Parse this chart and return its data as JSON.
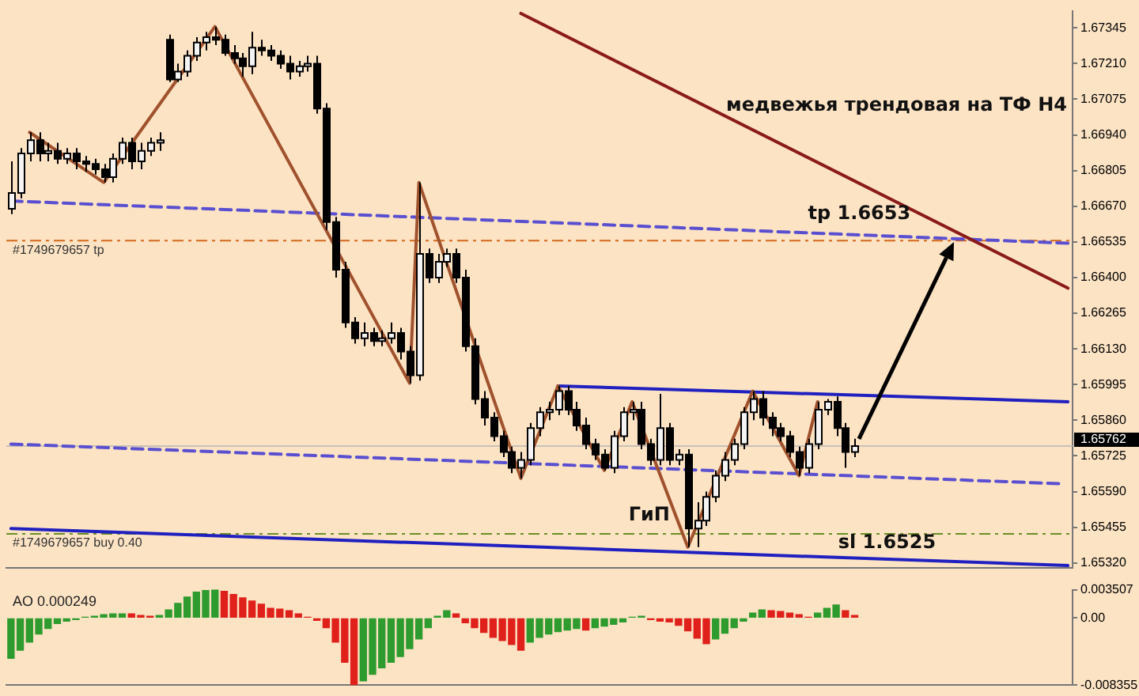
{
  "chart_data": [
    {
      "type": "candlestick",
      "ylim": [
        1.653,
        1.6741
      ],
      "tick_labels": "y",
      "grid": false,
      "yticks": [
        {
          "value": 1.6532,
          "label": "1.65320"
        },
        1.65455,
        {
          "value": 1.6559,
          "label": "1.65590"
        },
        1.65725,
        {
          "value": 1.6586,
          "label": "1.65860"
        },
        1.65995,
        {
          "value": 1.6613,
          "label": "1.66130"
        },
        1.66265,
        {
          "value": 1.664,
          "label": "1.66400"
        },
        1.66535,
        {
          "value": 1.6667,
          "label": "1.66670"
        },
        1.66805,
        {
          "value": 1.6694,
          "label": "1.66940"
        },
        1.67075,
        {
          "value": 1.6721,
          "label": "1.67210"
        },
        1.67345
      ],
      "categories": [
        null,
        null,
        null,
        null,
        null,
        null,
        null,
        null,
        null,
        null,
        null,
        null,
        null,
        null,
        null,
        null,
        null,
        null,
        null,
        null,
        null,
        null,
        null,
        null,
        null,
        null,
        null,
        null,
        null,
        null,
        null,
        null,
        null,
        null,
        null,
        null,
        null,
        null,
        null,
        null,
        null,
        null,
        null,
        null,
        null,
        null,
        null,
        null,
        null,
        null,
        null,
        null,
        null,
        null,
        null,
        null,
        null,
        null,
        null,
        null,
        null,
        null,
        null,
        null,
        null,
        null,
        null,
        null,
        null,
        null,
        null,
        null,
        null,
        null,
        null,
        null,
        null,
        null,
        null,
        null,
        null,
        null,
        null,
        null,
        null,
        null,
        null,
        null,
        null,
        null,
        null,
        null,
        null,
        null,
        null,
        null,
        null,
        null,
        null,
        null,
        null,
        null,
        null,
        null,
        null,
        null,
        null,
        null,
        null,
        null,
        null,
        null,
        null,
        null,
        null
      ],
      "ohlc": [
        [
          1.6666,
          1.6684,
          1.6664,
          1.6672
        ],
        [
          1.6672,
          1.6689,
          1.667,
          1.6687
        ],
        [
          1.6687,
          1.6695,
          1.6684,
          1.6692
        ],
        [
          1.6692,
          1.6695,
          1.6684,
          1.6687
        ],
        [
          1.6687,
          1.6691,
          1.6684,
          1.6688
        ],
        [
          1.6688,
          1.6691,
          1.6683,
          1.6685
        ],
        [
          1.6685,
          1.6689,
          1.6683,
          1.6687
        ],
        [
          1.6687,
          1.6689,
          1.6681,
          1.6684
        ],
        [
          1.6684,
          1.6686,
          1.668,
          1.6683
        ],
        [
          1.6683,
          1.6685,
          1.6679,
          1.6681
        ],
        [
          1.6681,
          1.6683,
          1.6676,
          1.6678
        ],
        [
          1.6678,
          1.6687,
          1.6676,
          1.6685
        ],
        [
          1.6685,
          1.6693,
          1.6683,
          1.6691
        ],
        [
          1.6691,
          1.6693,
          1.6681,
          1.6684
        ],
        [
          1.6684,
          1.6691,
          1.6681,
          1.6688
        ],
        [
          1.6688,
          1.6693,
          1.6686,
          1.6691
        ],
        [
          1.6691,
          1.6695,
          1.6688,
          1.6692
        ],
        [
          1.673,
          1.6732,
          1.6714,
          1.6715
        ],
        [
          1.6715,
          1.6721,
          1.6714,
          1.6718
        ],
        [
          1.6718,
          1.6726,
          1.6716,
          1.6724
        ],
        [
          1.6724,
          1.6731,
          1.6722,
          1.6729
        ],
        [
          1.6729,
          1.6733,
          1.6726,
          1.6731
        ],
        [
          1.6731,
          1.6735,
          1.6728,
          1.673
        ],
        [
          1.673,
          1.6732,
          1.6724,
          1.6725
        ],
        [
          1.6725,
          1.6728,
          1.6721,
          1.6723
        ],
        [
          1.6723,
          1.6725,
          1.6716,
          1.672
        ],
        [
          1.672,
          1.6733,
          1.6717,
          1.6727
        ],
        [
          1.6727,
          1.673,
          1.6724,
          1.6726
        ],
        [
          1.6726,
          1.6728,
          1.6722,
          1.6724
        ],
        [
          1.6724,
          1.6726,
          1.6719,
          1.6721
        ],
        [
          1.6721,
          1.6724,
          1.6715,
          1.6718
        ],
        [
          1.6718,
          1.6722,
          1.6716,
          1.672
        ],
        [
          1.672,
          1.6724,
          1.6718,
          1.6721
        ],
        [
          1.6721,
          1.6724,
          1.6702,
          1.6704
        ],
        [
          1.6704,
          1.6706,
          1.6658,
          1.6661
        ],
        [
          1.6661,
          1.6663,
          1.664,
          1.6643
        ],
        [
          1.6643,
          1.6646,
          1.6621,
          1.6623
        ],
        [
          1.6623,
          1.6625,
          1.6615,
          1.6617
        ],
        [
          1.6617,
          1.6623,
          1.6614,
          1.6619
        ],
        [
          1.6619,
          1.6621,
          1.6614,
          1.6616
        ],
        [
          1.6616,
          1.662,
          1.6614,
          1.6617
        ],
        [
          1.6617,
          1.6623,
          1.6615,
          1.6619
        ],
        [
          1.6619,
          1.6621,
          1.6609,
          1.6612
        ],
        [
          1.6612,
          1.6614,
          1.66,
          1.6603
        ],
        [
          1.6603,
          1.6676,
          1.6601,
          1.6649
        ],
        [
          1.6649,
          1.6651,
          1.6638,
          1.664
        ],
        [
          1.664,
          1.6649,
          1.6638,
          1.6646
        ],
        [
          1.6646,
          1.6651,
          1.6644,
          1.6649
        ],
        [
          1.6649,
          1.6651,
          1.6638,
          1.664
        ],
        [
          1.664,
          1.6643,
          1.6612,
          1.6614
        ],
        [
          1.6614,
          1.6617,
          1.6592,
          1.6594
        ],
        [
          1.6594,
          1.6597,
          1.6584,
          1.6587
        ],
        [
          1.6587,
          1.6589,
          1.6578,
          1.658
        ],
        [
          1.658,
          1.6582,
          1.6572,
          1.6574
        ],
        [
          1.6574,
          1.6576,
          1.6566,
          1.6568
        ],
        [
          1.6568,
          1.6574,
          1.6564,
          1.6571
        ],
        [
          1.6571,
          1.6585,
          1.6569,
          1.6583
        ],
        [
          1.6583,
          1.6591,
          1.658,
          1.6589
        ],
        [
          1.6589,
          1.6593,
          1.6586,
          1.659
        ],
        [
          1.659,
          1.6599,
          1.6588,
          1.6597
        ],
        [
          1.6597,
          1.6599,
          1.6588,
          1.659
        ],
        [
          1.659,
          1.6593,
          1.6582,
          1.6584
        ],
        [
          1.6584,
          1.6587,
          1.6575,
          1.6577
        ],
        [
          1.6577,
          1.6579,
          1.6571,
          1.6573
        ],
        [
          1.6573,
          1.6575,
          1.6567,
          1.6568
        ],
        [
          1.6568,
          1.6582,
          1.6566,
          1.658
        ],
        [
          1.658,
          1.6591,
          1.6578,
          1.6589
        ],
        [
          1.6589,
          1.6593,
          1.6586,
          1.659
        ],
        [
          1.659,
          1.6593,
          1.6575,
          1.6577
        ],
        [
          1.6577,
          1.6579,
          1.6569,
          1.6571
        ],
        [
          1.6571,
          1.6596,
          1.6569,
          1.6583
        ],
        [
          1.6583,
          1.6585,
          1.6569,
          1.6571
        ],
        [
          1.6571,
          1.6575,
          1.6569,
          1.6573
        ],
        [
          1.6573,
          1.6575,
          1.6538,
          1.6545
        ],
        [
          1.6545,
          1.6555,
          1.6538,
          1.6548
        ],
        [
          1.6548,
          1.6559,
          1.6546,
          1.6557
        ],
        [
          1.6557,
          1.6567,
          1.6555,
          1.6565
        ],
        [
          1.6565,
          1.6574,
          1.6563,
          1.6571
        ],
        [
          1.6571,
          1.6579,
          1.6569,
          1.6577
        ],
        [
          1.6577,
          1.6591,
          1.6575,
          1.6589
        ],
        [
          1.6589,
          1.6597,
          1.6586,
          1.6594
        ],
        [
          1.6594,
          1.6597,
          1.6584,
          1.6587
        ],
        [
          1.6587,
          1.6589,
          1.658,
          1.6583
        ],
        [
          1.6583,
          1.6585,
          1.6578,
          1.658
        ],
        [
          1.658,
          1.6582,
          1.6572,
          1.6574
        ],
        [
          1.6574,
          1.6576,
          1.6565,
          1.6568
        ],
        [
          1.6568,
          1.6579,
          1.6566,
          1.6577
        ],
        [
          1.6577,
          1.6593,
          1.6575,
          1.659
        ],
        [
          1.659,
          1.6594,
          1.6588,
          1.6593
        ],
        [
          1.6593,
          1.6595,
          1.658,
          1.6583
        ],
        [
          1.6583,
          1.6585,
          1.6568,
          1.6574
        ],
        [
          1.6574,
          1.6579,
          1.6572,
          1.65762
        ],
        null,
        null,
        null,
        null,
        null,
        null,
        null,
        null,
        null,
        null,
        null,
        null,
        null,
        null,
        null,
        null,
        null,
        null,
        null,
        null,
        null,
        null,
        null
      ],
      "series": [
        {
          "type": "line",
          "color": "#a0522d",
          "line_style": "solid",
          "values": [
            null,
            null,
            1.6695,
            null,
            null,
            null,
            null,
            null,
            null,
            null,
            1.6676,
            null,
            null,
            null,
            null,
            null,
            null,
            null,
            null,
            null,
            null,
            null,
            1.6735,
            null,
            null,
            null,
            null,
            null,
            null,
            null,
            null,
            null,
            null,
            null,
            null,
            null,
            null,
            null,
            null,
            null,
            null,
            null,
            null,
            1.66,
            1.6676,
            null,
            null,
            null,
            null,
            null,
            null,
            null,
            null,
            null,
            null,
            1.6564,
            null,
            null,
            null,
            1.6599,
            null,
            null,
            null,
            null,
            1.6567,
            null,
            null,
            1.6593,
            null,
            null,
            null,
            null,
            null,
            1.6538,
            null,
            null,
            null,
            null,
            null,
            null,
            1.6597,
            null,
            null,
            null,
            null,
            1.6565,
            null,
            1.6593,
            null,
            null,
            null,
            null,
            null,
            null,
            null,
            null,
            null,
            null,
            null,
            null,
            null,
            null,
            null,
            null,
            null,
            null,
            null,
            null,
            null,
            null,
            null,
            null,
            null,
            null,
            null
          ]
        },
        {
          "type": "line",
          "color": "#8b1a1a",
          "line_style": "solid",
          "values": [
            null,
            null,
            null,
            null,
            null,
            null,
            null,
            null,
            null,
            null,
            null,
            null,
            null,
            null,
            null,
            null,
            null,
            null,
            null,
            null,
            null,
            null,
            null,
            null,
            null,
            null,
            null,
            null,
            null,
            null,
            null,
            null,
            null,
            null,
            null,
            null,
            null,
            null,
            null,
            null,
            null,
            null,
            null,
            null,
            null,
            null,
            null,
            null,
            null,
            null,
            null,
            null,
            null,
            null,
            null,
            1.674,
            null,
            null,
            null,
            null,
            null,
            null,
            null,
            null,
            null,
            null,
            null,
            null,
            null,
            null,
            null,
            null,
            null,
            null,
            null,
            null,
            null,
            null,
            null,
            null,
            null,
            null,
            null,
            null,
            null,
            null,
            null,
            null,
            null,
            null,
            null,
            null,
            null,
            null,
            null,
            null,
            null,
            null,
            null,
            null,
            null,
            null,
            null,
            null,
            null,
            null,
            null,
            null,
            null,
            null,
            null,
            null,
            null,
            null,
            1.6636
          ]
        },
        {
          "type": "line",
          "color": "#2020c0",
          "line_style": "solid",
          "values": [
            null,
            null,
            null,
            null,
            null,
            null,
            null,
            null,
            null,
            null,
            null,
            null,
            null,
            null,
            null,
            null,
            null,
            null,
            null,
            null,
            null,
            null,
            null,
            null,
            null,
            null,
            null,
            null,
            null,
            null,
            null,
            null,
            null,
            null,
            null,
            null,
            null,
            null,
            null,
            null,
            null,
            null,
            null,
            null,
            null,
            null,
            null,
            null,
            null,
            null,
            null,
            null,
            null,
            null,
            null,
            null,
            null,
            null,
            null,
            1.6599,
            null,
            null,
            null,
            null,
            null,
            null,
            null,
            null,
            null,
            null,
            null,
            null,
            null,
            null,
            null,
            null,
            null,
            null,
            null,
            null,
            null,
            null,
            null,
            null,
            null,
            null,
            null,
            null,
            null,
            null,
            null,
            null,
            null,
            null,
            null,
            null,
            null,
            null,
            null,
            null,
            null,
            null,
            null,
            null,
            null,
            null,
            null,
            null,
            null,
            null,
            null,
            null,
            null,
            null,
            1.6593
          ]
        },
        {
          "type": "line",
          "color": "#2020c0",
          "line_style": "solid",
          "values": [
            1.6545,
            null,
            null,
            null,
            null,
            null,
            null,
            null,
            null,
            null,
            null,
            null,
            null,
            null,
            null,
            null,
            null,
            null,
            null,
            null,
            null,
            null,
            null,
            null,
            null,
            null,
            null,
            null,
            null,
            null,
            null,
            null,
            null,
            null,
            null,
            null,
            null,
            null,
            null,
            null,
            null,
            null,
            null,
            null,
            null,
            null,
            null,
            null,
            null,
            null,
            null,
            null,
            null,
            null,
            null,
            null,
            null,
            null,
            null,
            null,
            null,
            null,
            null,
            null,
            null,
            null,
            null,
            null,
            null,
            null,
            null,
            null,
            null,
            null,
            null,
            null,
            null,
            null,
            null,
            null,
            null,
            null,
            null,
            null,
            null,
            null,
            null,
            null,
            null,
            null,
            null,
            null,
            null,
            null,
            null,
            null,
            null,
            null,
            null,
            null,
            null,
            null,
            null,
            null,
            null,
            null,
            null,
            null,
            null,
            null,
            null,
            null,
            null,
            null,
            1.6531
          ]
        },
        {
          "type": "line",
          "color": "#5a4fd0",
          "line_style": "dashed",
          "values": [
            1.6669,
            null,
            null,
            null,
            null,
            null,
            null,
            null,
            null,
            null,
            null,
            null,
            null,
            null,
            null,
            null,
            null,
            null,
            null,
            null,
            null,
            null,
            null,
            null,
            null,
            null,
            null,
            null,
            null,
            null,
            null,
            null,
            null,
            null,
            null,
            null,
            null,
            null,
            null,
            null,
            null,
            null,
            null,
            null,
            null,
            null,
            null,
            null,
            null,
            null,
            null,
            null,
            null,
            null,
            null,
            null,
            null,
            null,
            null,
            null,
            null,
            null,
            null,
            null,
            null,
            null,
            null,
            null,
            null,
            null,
            null,
            null,
            null,
            null,
            null,
            null,
            null,
            null,
            null,
            null,
            null,
            null,
            null,
            null,
            null,
            null,
            null,
            null,
            null,
            null,
            null,
            null,
            null,
            null,
            null,
            null,
            null,
            null,
            null,
            null,
            null,
            null,
            null,
            null,
            null,
            null,
            null,
            null,
            null,
            null,
            null,
            null,
            null,
            null,
            1.6653
          ]
        },
        {
          "type": "line",
          "color": "#5a4fd0",
          "line_style": "dashed",
          "values": [
            1.6577,
            null,
            null,
            null,
            null,
            null,
            null,
            null,
            null,
            null,
            null,
            null,
            null,
            null,
            null,
            null,
            null,
            null,
            null,
            null,
            null,
            null,
            null,
            null,
            null,
            null,
            null,
            null,
            null,
            null,
            null,
            null,
            null,
            null,
            null,
            null,
            null,
            null,
            null,
            null,
            null,
            null,
            null,
            null,
            null,
            null,
            null,
            null,
            null,
            null,
            null,
            null,
            null,
            null,
            null,
            null,
            null,
            null,
            null,
            null,
            null,
            null,
            null,
            null,
            null,
            null,
            null,
            null,
            null,
            null,
            null,
            null,
            null,
            null,
            null,
            null,
            null,
            null,
            null,
            null,
            null,
            null,
            null,
            null,
            null,
            null,
            null,
            null,
            null,
            null,
            null,
            null,
            null,
            null,
            null,
            null,
            null,
            null,
            null,
            null,
            null,
            null,
            null,
            null,
            null,
            null,
            null,
            null,
            null,
            null,
            null,
            null,
            null,
            1.6562,
            null
          ]
        }
      ],
      "ref_lines": [
        {
          "axis": "y",
          "value": 1.6654,
          "label": "#1749679657 tp",
          "color": "#d2691e",
          "line_style": "dashed"
        },
        {
          "axis": "y",
          "value": 1.6543,
          "label": "#1749679657 buy 0.40",
          "color": "#6b8e23",
          "line_style": "dashed"
        },
        {
          "axis": "y",
          "value": 1.65762,
          "label": "1.65762",
          "color": "#c8c0b8",
          "line_style": "solid"
        }
      ],
      "annotations": [
        "медвежья трендовая на ТФ H4",
        "tp 1.6653",
        "ГиП",
        "sl 1.6525"
      ]
    },
    {
      "type": "bar",
      "title": "AO 0.000249",
      "ylim": [
        -0.008355,
        0.003507
      ],
      "tick_labels": "y",
      "grid": false,
      "yticks": [
        0.003507,
        {
          "value": 0,
          "label": "0.00"
        },
        -0.008355
      ],
      "categories": [
        null,
        null,
        null,
        null,
        null,
        null,
        null,
        null,
        null,
        null,
        null,
        null,
        null,
        null,
        null,
        null,
        null,
        null,
        null,
        null,
        null,
        null,
        null,
        null,
        null,
        null,
        null,
        null,
        null,
        null,
        null,
        null,
        null,
        null,
        null,
        null,
        null,
        null,
        null,
        null,
        null,
        null,
        null,
        null,
        null,
        null,
        null,
        null,
        null,
        null,
        null,
        null,
        null,
        null,
        null,
        null,
        null,
        null,
        null,
        null,
        null,
        null,
        null,
        null,
        null,
        null,
        null,
        null,
        null,
        null,
        null,
        null,
        null,
        null,
        null,
        null,
        null,
        null,
        null,
        null,
        null,
        null,
        null,
        null,
        null,
        null,
        null,
        null,
        null,
        null,
        null,
        null,
        null,
        null,
        null,
        null,
        null,
        null,
        null,
        null,
        null,
        null,
        null,
        null,
        null,
        null,
        null,
        null,
        null,
        null,
        null,
        null,
        null,
        null,
        null
      ],
      "values": [
        -0.005,
        -0.004,
        -0.003,
        -0.002,
        -0.0013,
        -0.0007,
        -0.0004,
        -0.0002,
        0.0001,
        0.0002,
        0.0004,
        0.0005,
        0.0005,
        0.0005,
        0.0003,
        0.0002,
        0.0003,
        0.001,
        0.0018,
        0.0026,
        0.0032,
        0.0034,
        0.0035,
        0.0033,
        0.0029,
        0.0025,
        0.0021,
        0.0017,
        0.0012,
        0.0011,
        0.0009,
        0.0005,
        0.0001,
        -0.0003,
        -0.0012,
        -0.003,
        -0.0055,
        -0.0083,
        -0.0078,
        -0.007,
        -0.0062,
        -0.0055,
        -0.0048,
        -0.0038,
        -0.0026,
        -0.0012,
        0.0002,
        0.0009,
        0.0005,
        -0.0006,
        -0.0012,
        -0.0018,
        -0.0024,
        -0.0028,
        -0.0033,
        -0.004,
        -0.003,
        -0.0024,
        -0.002,
        -0.0017,
        -0.0015,
        -0.0013,
        -0.0015,
        -0.0012,
        -0.001,
        -0.0008,
        -0.0005,
        0.0001,
        0.0002,
        -0.0002,
        -0.0004,
        -0.0005,
        -0.0009,
        -0.0016,
        -0.0025,
        -0.0032,
        -0.0026,
        -0.0019,
        -0.0012,
        -0.0004,
        0.0006,
        0.001,
        0.0009,
        0.0008,
        0.0006,
        0.0004,
        0.0001,
        0.0006,
        0.0012,
        0.0016,
        0.0009,
        0.0003,
        null,
        null,
        null,
        null,
        null,
        null,
        null,
        null,
        null,
        null,
        null,
        null,
        null,
        null,
        null,
        null,
        null,
        null,
        null,
        null,
        null,
        null,
        null
      ],
      "colors": [
        "#2e9b2e",
        "#2e9b2e",
        "#2e9b2e",
        "#2e9b2e",
        "#2e9b2e",
        "#2e9b2e",
        "#2e9b2e",
        "#2e9b2e",
        "#2e9b2e",
        "#2e9b2e",
        "#2e9b2e",
        "#2e9b2e",
        "#2e9b2e",
        "#e0201a",
        "#e0201a",
        "#e0201a",
        "#2e9b2e",
        "#2e9b2e",
        "#2e9b2e",
        "#2e9b2e",
        "#2e9b2e",
        "#2e9b2e",
        "#2e9b2e",
        "#e0201a",
        "#e0201a",
        "#e0201a",
        "#e0201a",
        "#e0201a",
        "#e0201a",
        "#e0201a",
        "#e0201a",
        "#e0201a",
        "#e0201a",
        "#e0201a",
        "#e0201a",
        "#e0201a",
        "#e0201a",
        "#e0201a",
        "#2e9b2e",
        "#2e9b2e",
        "#2e9b2e",
        "#2e9b2e",
        "#2e9b2e",
        "#2e9b2e",
        "#2e9b2e",
        "#2e9b2e",
        "#2e9b2e",
        "#2e9b2e",
        "#e0201a",
        "#e0201a",
        "#e0201a",
        "#e0201a",
        "#e0201a",
        "#e0201a",
        "#e0201a",
        "#e0201a",
        "#2e9b2e",
        "#2e9b2e",
        "#2e9b2e",
        "#2e9b2e",
        "#2e9b2e",
        "#2e9b2e",
        "#e0201a",
        "#2e9b2e",
        "#2e9b2e",
        "#2e9b2e",
        "#2e9b2e",
        "#2e9b2e",
        "#2e9b2e",
        "#e0201a",
        "#e0201a",
        "#e0201a",
        "#e0201a",
        "#e0201a",
        "#e0201a",
        "#e0201a",
        "#2e9b2e",
        "#2e9b2e",
        "#2e9b2e",
        "#2e9b2e",
        "#2e9b2e",
        "#2e9b2e",
        "#e0201a",
        "#e0201a",
        "#e0201a",
        "#e0201a",
        "#e0201a",
        "#2e9b2e",
        "#2e9b2e",
        "#2e9b2e",
        "#e0201a",
        "#e0201a",
        null,
        null,
        null,
        null,
        null,
        null,
        null,
        null,
        null,
        null,
        null,
        null,
        null,
        null,
        null,
        null,
        null,
        null,
        null,
        null,
        null,
        null,
        null
      ]
    }
  ]
}
